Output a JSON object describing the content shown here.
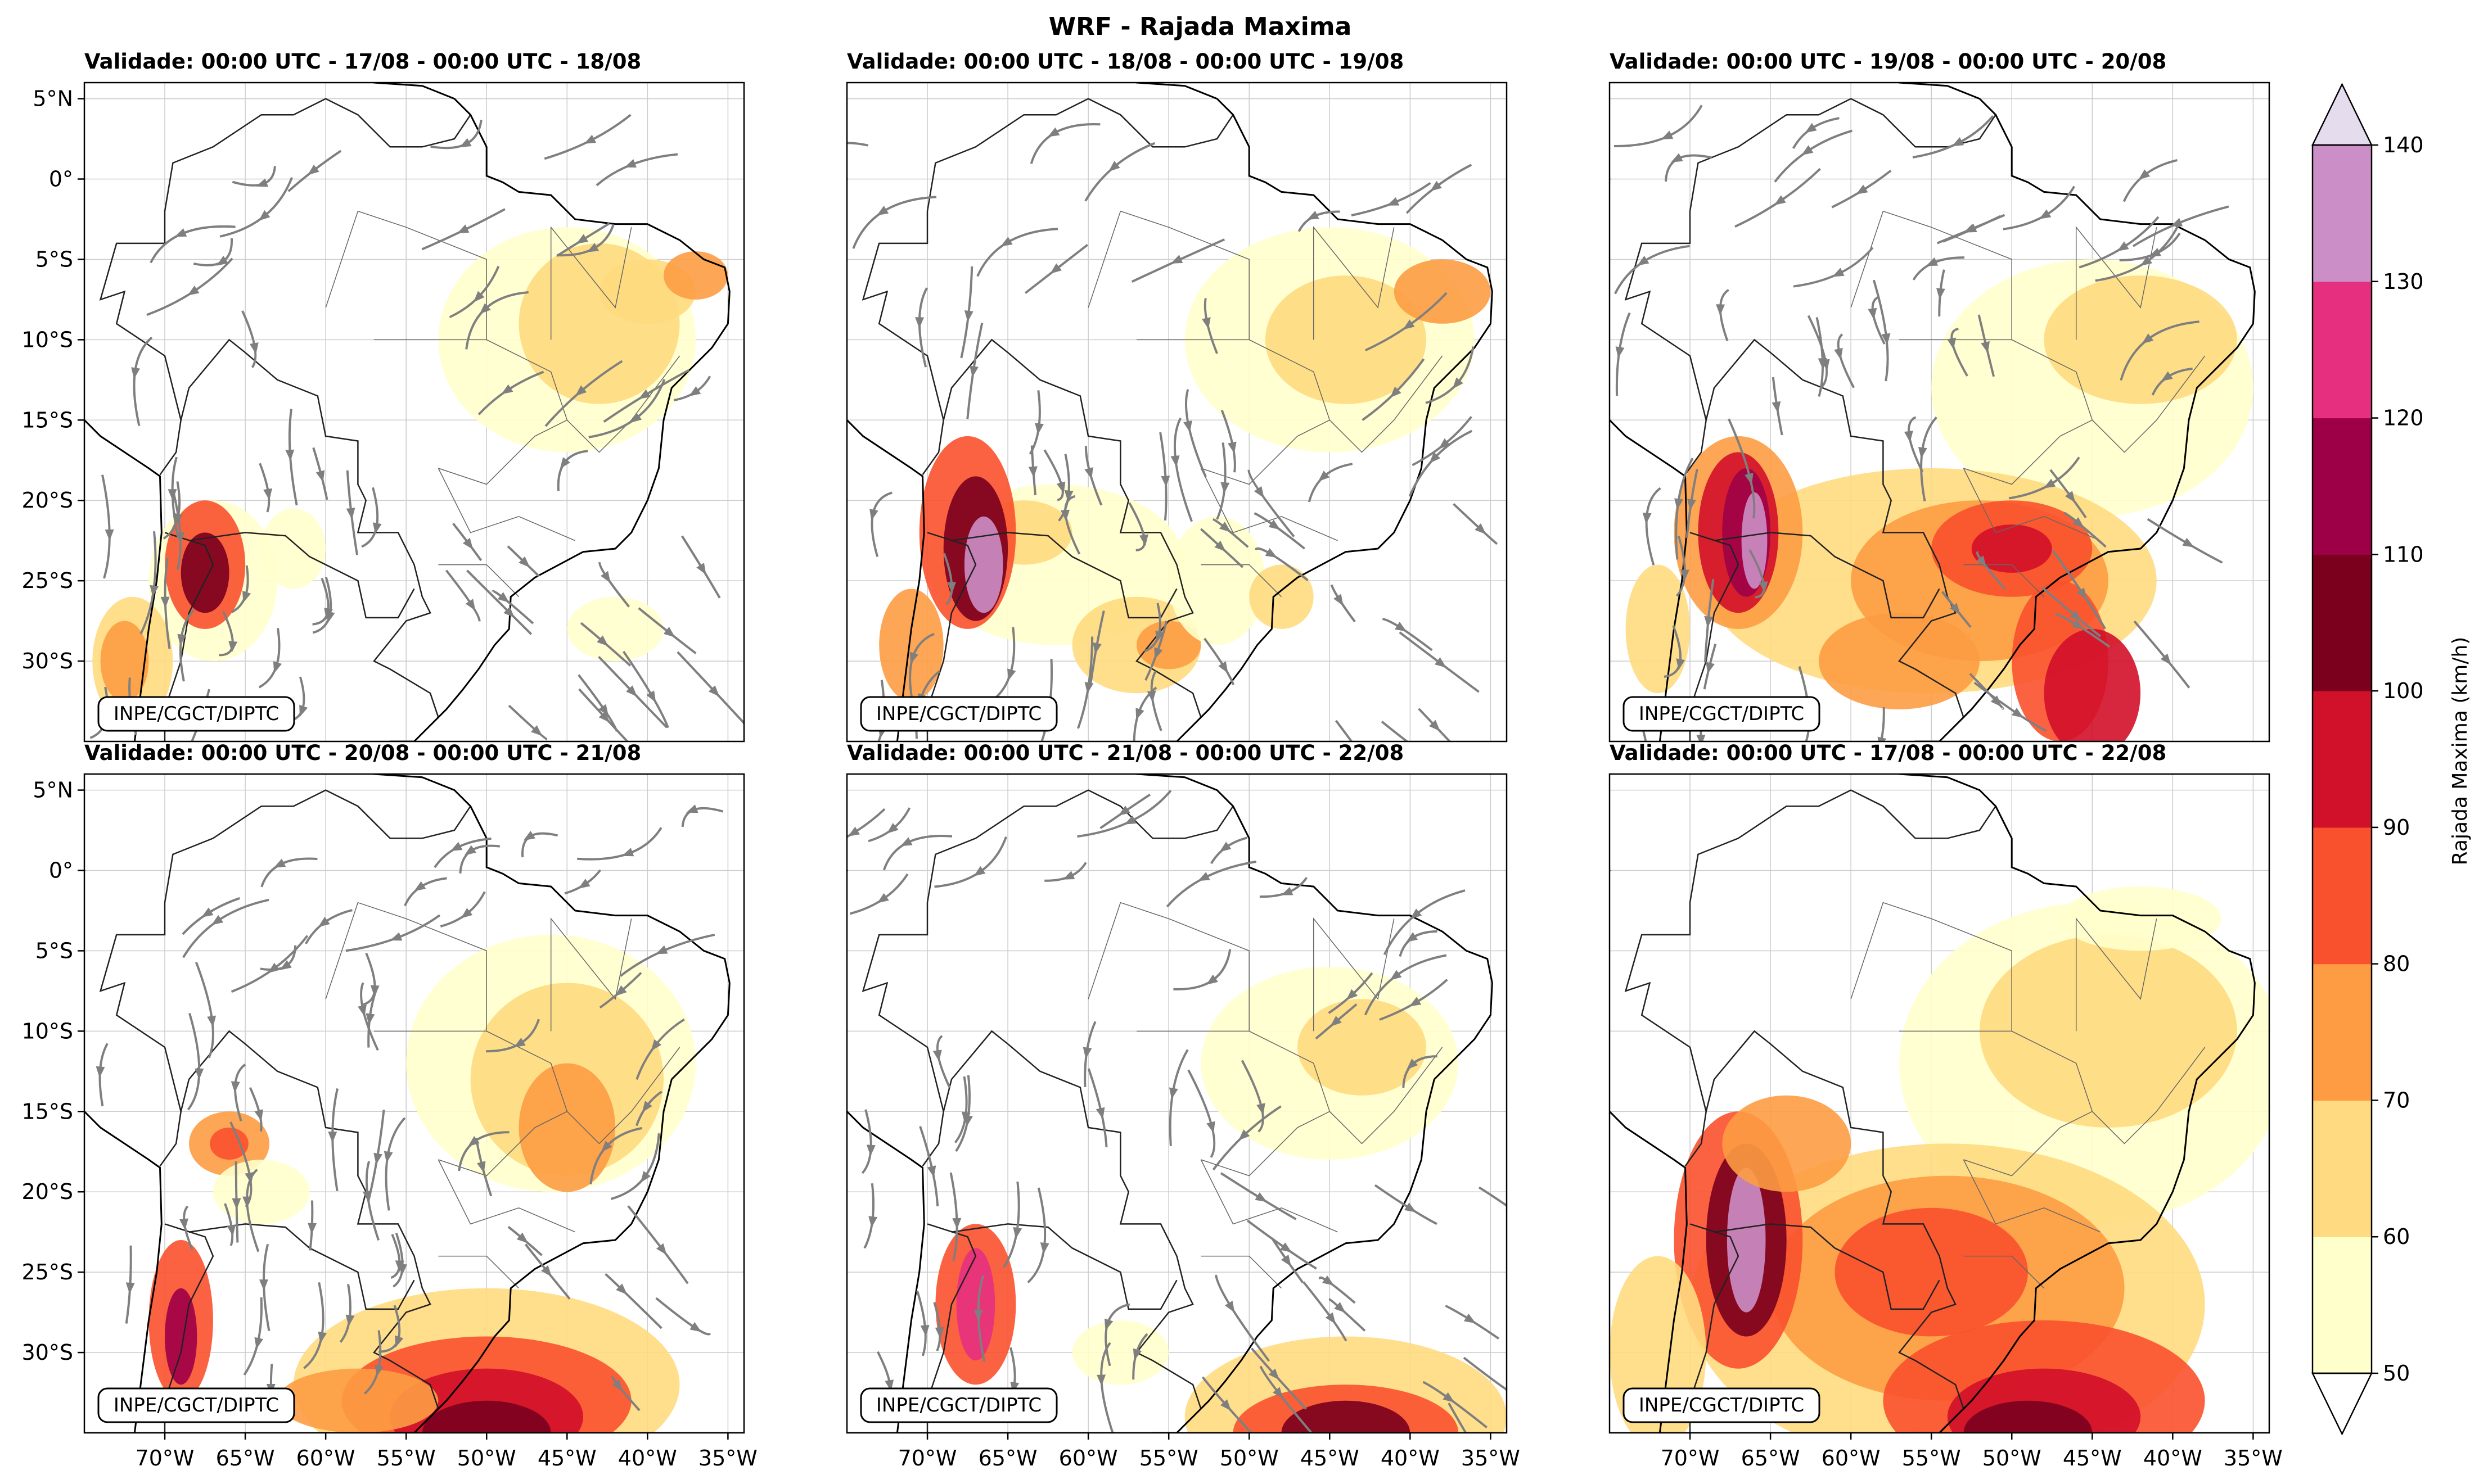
{
  "figure": {
    "title": "WRF - Rajada Maxima",
    "credit": "INPE/CGCT/DIPTC"
  },
  "panels": [
    {
      "title": "Validade: 00:00 UTC - 17/08 - 00:00 UTC - 18/08"
    },
    {
      "title": "Validade: 00:00 UTC - 18/08 - 00:00 UTC - 19/08"
    },
    {
      "title": "Validade: 00:00 UTC - 19/08 - 00:00 UTC - 20/08"
    },
    {
      "title": "Validade: 00:00 UTC - 20/08 - 00:00 UTC - 21/08"
    },
    {
      "title": "Validade: 00:00 UTC - 21/08 - 00:00 UTC - 22/08"
    },
    {
      "title": "Validade: 00:00 UTC - 17/08 - 00:00 UTC - 22/08"
    }
  ],
  "axes": {
    "lat_labels": [
      "5°N",
      "0°",
      "5°S",
      "10°S",
      "15°S",
      "20°S",
      "25°S",
      "30°S"
    ],
    "lat_values": [
      5,
      0,
      -5,
      -10,
      -15,
      -20,
      -25,
      -30
    ],
    "lon_labels": [
      "70°W",
      "65°W",
      "60°W",
      "55°W",
      "50°W",
      "45°W",
      "40°W",
      "35°W"
    ],
    "lon_values": [
      -70,
      -65,
      -60,
      -55,
      -50,
      -45,
      -40,
      -35
    ],
    "lat_range": [
      -35,
      6
    ],
    "lon_range": [
      -75,
      -34
    ]
  },
  "colorbar": {
    "label": "Rajada Maxima (km/h)",
    "ticks": [
      "50",
      "60",
      "70",
      "80",
      "90",
      "100",
      "110",
      "120",
      "130",
      "140"
    ],
    "levels": [
      50,
      60,
      70,
      80,
      90,
      100,
      110,
      120,
      130,
      140
    ],
    "colors": [
      "#ffffcc",
      "#ffda80",
      "#fd9c42",
      "#f9512d",
      "#d1102a",
      "#7a001e",
      "#9e0047",
      "#e6307f",
      "#cc8ec6",
      "#e5dded"
    ]
  },
  "colors": {
    "streamline": "#7f7f7f",
    "coast": "#000000",
    "border": "#666666",
    "grid": "#cccccc"
  }
}
